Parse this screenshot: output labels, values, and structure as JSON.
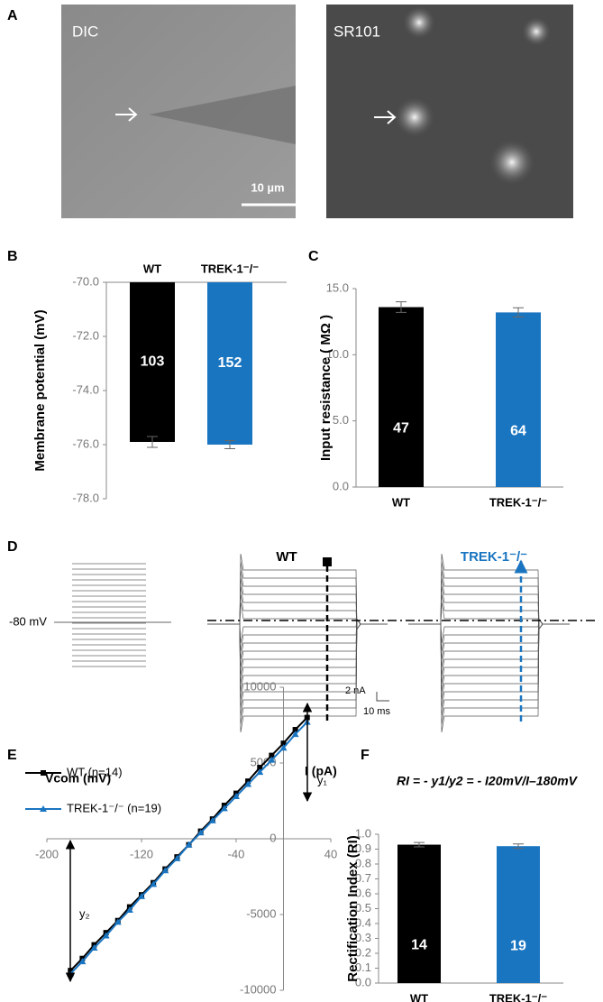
{
  "panel_labels": [
    "A",
    "B",
    "C",
    "D",
    "E",
    "F"
  ],
  "images": [
    {
      "label": "DIC",
      "scale_bar": "10 µm"
    },
    {
      "label": "SR101"
    }
  ],
  "traces": {
    "holding": "-80 mV",
    "titles": [
      "WT",
      "TREK-1⁻/⁻"
    ],
    "scale_y": "2 nA",
    "scale_x": "10 ms"
  },
  "chart_data": [
    {
      "type": "bar",
      "y_label": "Membrane potential (mV)",
      "categories": [
        "WT",
        "TREK-1⁻/⁻"
      ],
      "values": [
        -75.9,
        -76.0
      ],
      "errors": [
        0.2,
        0.15
      ],
      "n": [
        103,
        152
      ],
      "colors": [
        "#000000",
        "#1a75c1"
      ],
      "ylim": [
        -78,
        -70
      ],
      "yticks": [
        {
          "value": -78,
          "label": "-78.0"
        },
        {
          "value": -76,
          "label": "-76.0"
        },
        {
          "value": -74,
          "label": "-74.0"
        },
        {
          "value": -72,
          "label": "-72.0"
        },
        {
          "value": -70,
          "label": "-70.0"
        }
      ]
    },
    {
      "type": "bar",
      "y_label": "Input resistance ( MΩ )",
      "categories": [
        "WT",
        "TREK-1⁻/⁻"
      ],
      "values": [
        13.6,
        13.2
      ],
      "errors": [
        0.4,
        0.35
      ],
      "n": [
        47,
        64
      ],
      "colors": [
        "#000000",
        "#1a75c1"
      ],
      "ylim": [
        0,
        15
      ],
      "yticks": [
        {
          "value": 0,
          "label": "0.0"
        },
        {
          "value": 5,
          "label": "5.0"
        },
        {
          "value": 10,
          "label": "10.0"
        },
        {
          "value": 15,
          "label": "15.0"
        }
      ]
    },
    {
      "type": "line",
      "x_label": "Vcom (mV)",
      "y_label": "I (pA)",
      "annotations": [
        "y₁",
        "y₂"
      ],
      "x": [
        -180,
        -170,
        -160,
        -150,
        -140,
        -130,
        -120,
        -110,
        -100,
        -90,
        -80,
        -70,
        -60,
        -50,
        -40,
        -30,
        -20,
        -10,
        0,
        10,
        20
      ],
      "series": [
        {
          "name": "WT (n=14)",
          "color": "#000000",
          "marker": "square",
          "values": [
            -8700,
            -7900,
            -7000,
            -6200,
            -5400,
            -4500,
            -3700,
            -2900,
            -2000,
            -1200,
            -400,
            500,
            1300,
            2200,
            3000,
            3800,
            4700,
            5500,
            6300,
            7200,
            8000
          ]
        },
        {
          "name": "TREK-1⁻/⁻ (n=19)",
          "color": "#1a75c1",
          "marker": "triangle",
          "values": [
            -8900,
            -8100,
            -7200,
            -6400,
            -5500,
            -4700,
            -3800,
            -3000,
            -2100,
            -1300,
            -400,
            400,
            1200,
            2000,
            2800,
            3600,
            4400,
            5200,
            6000,
            6900,
            7700
          ]
        }
      ],
      "xlim": [
        -200,
        40
      ],
      "xticks": [
        -200,
        -120,
        -40,
        40
      ],
      "ylim": [
        -10000,
        10000
      ],
      "yticks": [
        -10000,
        -5000,
        0,
        5000,
        10000
      ]
    },
    {
      "type": "bar",
      "title": "RI = - y1/y2 = - I20mV/I–180mV",
      "y_label": "Rectification Index (RI)",
      "categories": [
        "WT",
        "TREK-1⁻/⁻"
      ],
      "values": [
        0.93,
        0.92
      ],
      "errors": [
        0.015,
        0.015
      ],
      "n": [
        14,
        19
      ],
      "colors": [
        "#000000",
        "#1a75c1"
      ],
      "ylim": [
        0,
        1
      ],
      "yticks": [
        {
          "value": 0,
          "label": "0.0"
        },
        {
          "value": 0.1,
          "label": "0.1"
        },
        {
          "value": 0.2,
          "label": "0.2"
        },
        {
          "value": 0.3,
          "label": "0.3"
        },
        {
          "value": 0.4,
          "label": "0.4"
        },
        {
          "value": 0.5,
          "label": "0.5"
        },
        {
          "value": 0.6,
          "label": "0.6"
        },
        {
          "value": 0.7,
          "label": "0.7"
        },
        {
          "value": 0.8,
          "label": "0.8"
        },
        {
          "value": 0.9,
          "label": "0.9"
        },
        {
          "value": 1,
          "label": "1.0"
        }
      ]
    }
  ]
}
